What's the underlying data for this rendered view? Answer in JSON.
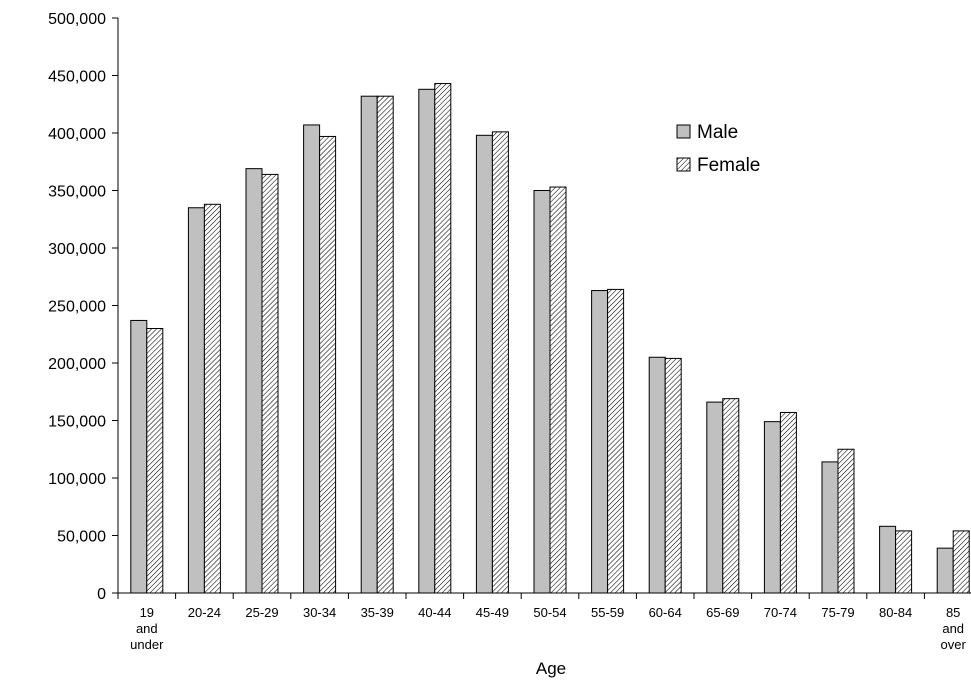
{
  "chart_data": {
    "type": "bar",
    "xlabel": "Age",
    "ylabel": "",
    "ylim": [
      0,
      500000
    ],
    "yticks": [
      0,
      50000,
      100000,
      150000,
      200000,
      250000,
      300000,
      350000,
      400000,
      450000,
      500000
    ],
    "ytick_labels": [
      "0",
      "50,000",
      "100,000",
      "150,000",
      "200,000",
      "250,000",
      "300,000",
      "350,000",
      "400,000",
      "450,000",
      "500,000"
    ],
    "categories": [
      [
        "19",
        "and",
        "under"
      ],
      [
        "20-24"
      ],
      [
        "25-29"
      ],
      [
        "30-34"
      ],
      [
        "35-39"
      ],
      [
        "40-44"
      ],
      [
        "45-49"
      ],
      [
        "50-54"
      ],
      [
        "55-59"
      ],
      [
        "60-64"
      ],
      [
        "65-69"
      ],
      [
        "70-74"
      ],
      [
        "75-79"
      ],
      [
        "80-84"
      ],
      [
        "85",
        "and",
        "over"
      ]
    ],
    "series": [
      {
        "name": "Male",
        "fill": "#c0c0c0",
        "pattern": "solid",
        "values": [
          237000,
          335000,
          369000,
          407000,
          432000,
          438000,
          398000,
          350000,
          263000,
          205000,
          166000,
          149000,
          114000,
          58000,
          39000
        ]
      },
      {
        "name": "Female",
        "fill": "#ffffff",
        "pattern": "diagonal-hatch",
        "values": [
          230000,
          338000,
          364000,
          397000,
          432000,
          443000,
          401000,
          353000,
          264000,
          204000,
          169000,
          157000,
          125000,
          54000,
          54000
        ]
      }
    ],
    "legend_position": "top-right",
    "grid": false
  }
}
